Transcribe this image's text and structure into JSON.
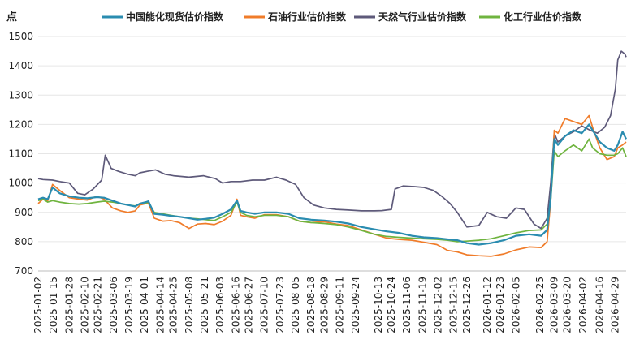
{
  "chart_data": {
    "type": "line",
    "ylabel": "点",
    "ylim": [
      700,
      1500
    ],
    "yticks": [
      700,
      800,
      900,
      1000,
      1100,
      1200,
      1300,
      1400,
      1500
    ],
    "grid": "horizontal",
    "legend_position": "top",
    "x_start": "2025-01-02",
    "x_end": "2026-05-08",
    "xticks": [
      "2025-01-02",
      "2025-01-15",
      "2025-01-28",
      "2025-02-10",
      "2025-02-21",
      "2025-03-06",
      "2025-03-19",
      "2025-04-01",
      "2025-04-14",
      "2025-04-25",
      "2025-05-08",
      "2025-05-21",
      "2025-06-03",
      "2025-06-16",
      "2025-06-27",
      "2025-07-10",
      "2025-07-23",
      "2025-08-05",
      "2025-08-18",
      "2025-08-29",
      "2025-09-11",
      "2025-09-24",
      "2025-10-13",
      "2025-10-24",
      "2025-11-06",
      "2025-11-19",
      "2025-12-02",
      "2025-12-15",
      "2025-12-26",
      "2026-01-12",
      "2026-01-23",
      "2026-02-05",
      "2026-02-25",
      "2026-03-09",
      "2026-03-20",
      "2026-04-02",
      "2026-04-16",
      "2026-04-29"
    ],
    "series": [
      {
        "name": "中国能化现货估价指数",
        "color": "#2a8cb0",
        "x": [
          "2025-01-02",
          "2025-01-06",
          "2025-01-10",
          "2025-01-14",
          "2025-01-20",
          "2025-01-28",
          "2025-02-05",
          "2025-02-12",
          "2025-02-20",
          "2025-02-26",
          "2025-03-05",
          "2025-03-12",
          "2025-03-18",
          "2025-03-24",
          "2025-03-28",
          "2025-04-02",
          "2025-04-04",
          "2025-04-09",
          "2025-04-16",
          "2025-04-23",
          "2025-04-30",
          "2025-05-08",
          "2025-05-15",
          "2025-05-22",
          "2025-05-29",
          "2025-06-05",
          "2025-06-12",
          "2025-06-17",
          "2025-06-20",
          "2025-06-25",
          "2025-07-02",
          "2025-07-10",
          "2025-07-20",
          "2025-07-30",
          "2025-08-08",
          "2025-08-18",
          "2025-08-29",
          "2025-09-08",
          "2025-09-18",
          "2025-09-29",
          "2025-10-10",
          "2025-10-20",
          "2025-10-30",
          "2025-11-10",
          "2025-11-20",
          "2025-12-01",
          "2025-12-10",
          "2025-12-18",
          "2025-12-26",
          "2026-01-05",
          "2026-01-15",
          "2026-01-26",
          "2026-02-05",
          "2026-02-16",
          "2026-02-26",
          "2026-03-03",
          "2026-03-06",
          "2026-03-09",
          "2026-03-12",
          "2026-03-18",
          "2026-03-25",
          "2026-04-01",
          "2026-04-07",
          "2026-04-10",
          "2026-04-16",
          "2026-04-22",
          "2026-04-28",
          "2026-05-01",
          "2026-05-05",
          "2026-05-08"
        ],
        "values": [
          945,
          950,
          945,
          985,
          965,
          955,
          950,
          948,
          952,
          950,
          940,
          930,
          925,
          920,
          930,
          935,
          938,
          895,
          892,
          888,
          885,
          880,
          875,
          878,
          882,
          895,
          910,
          940,
          905,
          900,
          895,
          900,
          900,
          895,
          880,
          875,
          872,
          868,
          862,
          850,
          842,
          835,
          830,
          820,
          815,
          812,
          808,
          805,
          795,
          790,
          795,
          805,
          820,
          825,
          820,
          840,
          950,
          1150,
          1130,
          1160,
          1180,
          1170,
          1200,
          1180,
          1140,
          1120,
          1110,
          1130,
          1175,
          1150
        ]
      },
      {
        "name": "石油行业估价指数",
        "color": "#f07c2a",
        "x": [
          "2025-01-02",
          "2025-01-06",
          "2025-01-10",
          "2025-01-14",
          "2025-01-20",
          "2025-01-28",
          "2025-02-05",
          "2025-02-12",
          "2025-02-20",
          "2025-02-26",
          "2025-03-05",
          "2025-03-12",
          "2025-03-18",
          "2025-03-24",
          "2025-03-28",
          "2025-04-02",
          "2025-04-04",
          "2025-04-09",
          "2025-04-16",
          "2025-04-23",
          "2025-04-30",
          "2025-05-08",
          "2025-05-15",
          "2025-05-22",
          "2025-05-29",
          "2025-06-05",
          "2025-06-12",
          "2025-06-17",
          "2025-06-20",
          "2025-06-25",
          "2025-07-02",
          "2025-07-10",
          "2025-07-20",
          "2025-07-30",
          "2025-08-08",
          "2025-08-18",
          "2025-08-29",
          "2025-09-08",
          "2025-09-18",
          "2025-09-29",
          "2025-10-10",
          "2025-10-20",
          "2025-10-30",
          "2025-11-10",
          "2025-11-20",
          "2025-12-01",
          "2025-12-10",
          "2025-12-18",
          "2025-12-26",
          "2026-01-05",
          "2026-01-15",
          "2026-01-26",
          "2026-02-05",
          "2026-02-16",
          "2026-02-26",
          "2026-03-03",
          "2026-03-06",
          "2026-03-09",
          "2026-03-12",
          "2026-03-18",
          "2026-03-25",
          "2026-04-01",
          "2026-04-07",
          "2026-04-10",
          "2026-04-16",
          "2026-04-22",
          "2026-04-28",
          "2026-05-01",
          "2026-05-05",
          "2026-05-08"
        ],
        "values": [
          930,
          945,
          940,
          995,
          975,
          950,
          945,
          942,
          955,
          945,
          915,
          905,
          900,
          905,
          925,
          930,
          932,
          880,
          870,
          872,
          865,
          845,
          860,
          862,
          858,
          870,
          890,
          945,
          890,
          885,
          880,
          892,
          892,
          885,
          870,
          865,
          868,
          860,
          855,
          840,
          825,
          812,
          808,
          805,
          798,
          790,
          770,
          765,
          755,
          752,
          750,
          758,
          772,
          782,
          780,
          800,
          940,
          1180,
          1170,
          1220,
          1210,
          1200,
          1230,
          1190,
          1120,
          1080,
          1090,
          1120,
          1130,
          1140
        ]
      },
      {
        "name": "天然气行业估价指数",
        "color": "#5e5a7a",
        "x": [
          "2025-01-02",
          "2025-01-06",
          "2025-01-14",
          "2025-01-20",
          "2025-01-28",
          "2025-02-04",
          "2025-02-10",
          "2025-02-17",
          "2025-02-24",
          "2025-02-27",
          "2025-03-04",
          "2025-03-10",
          "2025-03-18",
          "2025-03-24",
          "2025-03-28",
          "2025-04-03",
          "2025-04-10",
          "2025-04-18",
          "2025-04-25",
          "2025-05-08",
          "2025-05-20",
          "2025-05-30",
          "2025-06-05",
          "2025-06-12",
          "2025-06-20",
          "2025-06-30",
          "2025-07-10",
          "2025-07-20",
          "2025-07-28",
          "2025-08-05",
          "2025-08-12",
          "2025-08-20",
          "2025-08-29",
          "2025-09-08",
          "2025-09-18",
          "2025-09-29",
          "2025-10-10",
          "2025-10-16",
          "2025-10-24",
          "2025-10-27",
          "2025-11-03",
          "2025-11-12",
          "2025-11-20",
          "2025-11-28",
          "2025-12-05",
          "2025-12-12",
          "2025-12-18",
          "2025-12-26",
          "2026-01-05",
          "2026-01-12",
          "2026-01-20",
          "2026-01-28",
          "2026-02-05",
          "2026-02-12",
          "2026-02-20",
          "2026-02-26",
          "2026-03-03",
          "2026-03-06",
          "2026-03-09",
          "2026-03-12",
          "2026-03-18",
          "2026-03-25",
          "2026-04-01",
          "2026-04-08",
          "2026-04-14",
          "2026-04-20",
          "2026-04-25",
          "2026-04-29",
          "2026-05-01",
          "2026-05-04",
          "2026-05-07",
          "2026-05-08"
        ],
        "values": [
          1015,
          1012,
          1010,
          1005,
          1000,
          965,
          960,
          980,
          1010,
          1095,
          1050,
          1040,
          1030,
          1025,
          1035,
          1040,
          1045,
          1030,
          1025,
          1020,
          1025,
          1015,
          1000,
          1005,
          1005,
          1010,
          1010,
          1020,
          1010,
          995,
          950,
          925,
          915,
          910,
          908,
          905,
          905,
          906,
          910,
          980,
          990,
          988,
          985,
          975,
          955,
          930,
          900,
          850,
          855,
          900,
          885,
          880,
          915,
          910,
          860,
          845,
          880,
          1000,
          1170,
          1140,
          1160,
          1175,
          1195,
          1180,
          1170,
          1190,
          1230,
          1320,
          1420,
          1450,
          1440,
          1430
        ]
      },
      {
        "name": "化工行业估价指数",
        "color": "#6fb43f",
        "x": [
          "2025-01-02",
          "2025-01-06",
          "2025-01-10",
          "2025-01-14",
          "2025-01-20",
          "2025-01-28",
          "2025-02-05",
          "2025-02-12",
          "2025-02-20",
          "2025-02-26",
          "2025-03-05",
          "2025-03-12",
          "2025-03-18",
          "2025-03-24",
          "2025-03-28",
          "2025-04-02",
          "2025-04-04",
          "2025-04-09",
          "2025-04-16",
          "2025-04-23",
          "2025-04-30",
          "2025-05-08",
          "2025-05-15",
          "2025-05-22",
          "2025-05-29",
          "2025-06-05",
          "2025-06-12",
          "2025-06-17",
          "2025-06-20",
          "2025-06-25",
          "2025-07-02",
          "2025-07-10",
          "2025-07-20",
          "2025-07-30",
          "2025-08-08",
          "2025-08-18",
          "2025-08-29",
          "2025-09-08",
          "2025-09-18",
          "2025-09-29",
          "2025-10-10",
          "2025-10-20",
          "2025-10-30",
          "2025-11-10",
          "2025-11-20",
          "2025-12-01",
          "2025-12-10",
          "2025-12-18",
          "2025-12-26",
          "2026-01-05",
          "2026-01-15",
          "2026-01-26",
          "2026-02-05",
          "2026-02-16",
          "2026-02-26",
          "2026-03-03",
          "2026-03-06",
          "2026-03-09",
          "2026-03-12",
          "2026-03-18",
          "2026-03-25",
          "2026-04-01",
          "2026-04-07",
          "2026-04-10",
          "2026-04-16",
          "2026-04-22",
          "2026-04-28",
          "2026-05-01",
          "2026-05-05",
          "2026-05-08"
        ],
        "values": [
          940,
          945,
          935,
          940,
          935,
          930,
          928,
          930,
          935,
          938,
          935,
          930,
          925,
          922,
          928,
          932,
          935,
          900,
          895,
          890,
          885,
          880,
          878,
          875,
          872,
          885,
          900,
          935,
          900,
          890,
          885,
          890,
          890,
          885,
          870,
          865,
          862,
          858,
          850,
          838,
          825,
          818,
          815,
          812,
          810,
          808,
          805,
          800,
          802,
          805,
          810,
          820,
          830,
          838,
          840,
          860,
          940,
          1110,
          1090,
          1110,
          1130,
          1110,
          1150,
          1120,
          1100,
          1095,
          1095,
          1100,
          1120,
          1090
        ]
      }
    ]
  }
}
